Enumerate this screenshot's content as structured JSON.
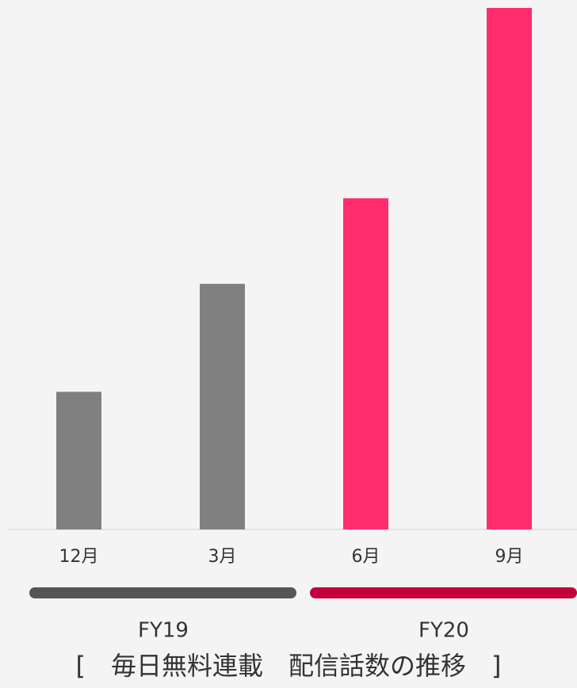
{
  "chart_data": {
    "type": "bar",
    "title": "[　毎日無料連載　配信話数の推移　]",
    "categories": [
      "12月",
      "3月",
      "6月",
      "9月"
    ],
    "values": [
      26.4,
      47.1,
      63.5,
      100
    ],
    "colors": [
      "#808080",
      "#808080",
      "#ff2d6e",
      "#ff2d6e"
    ],
    "ylim": [
      0,
      100
    ],
    "groups": [
      {
        "name": "FY19",
        "color": "#555555"
      },
      {
        "name": "FY20",
        "color": "#c4003c"
      }
    ]
  }
}
